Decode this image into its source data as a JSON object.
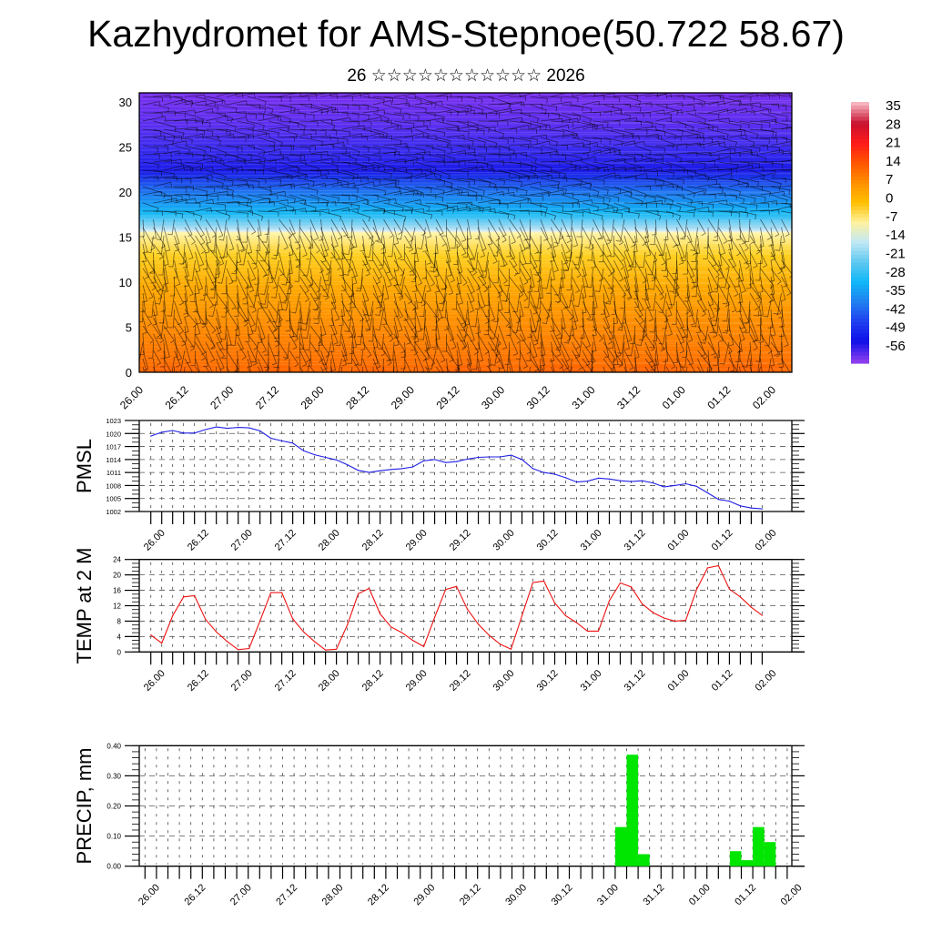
{
  "header": {
    "title": "Kazhydromet for AMS-Stepnoe(50.722 58.67)",
    "subtitle": "26 ☆☆☆☆☆☆☆☆☆☆☆ 2026"
  },
  "colors": {
    "pmsl_line": "#1f1fe6",
    "temp_line": "#ee1111",
    "precip_bar": "#00e600",
    "grid": "#555555"
  },
  "chart_data": [
    {
      "type": "heatmap",
      "name": "cross-section",
      "ylim": [
        0,
        31
      ],
      "yticks": [
        "0",
        "5",
        "10",
        "15",
        "20",
        "25",
        "30"
      ],
      "xticks": [
        "26.00",
        "26.12",
        "27.00",
        "27.12",
        "28.00",
        "28.12",
        "29.00",
        "29.12",
        "30.00",
        "30.12",
        "31.00",
        "31.12",
        "01.00",
        "01.12",
        "02.00"
      ],
      "colorbar": {
        "labels": [
          "35",
          "28",
          "21",
          "14",
          "7",
          "0",
          "-7",
          "-14",
          "-21",
          "-28",
          "-35",
          "-42",
          "-49",
          "-56"
        ],
        "stops": [
          "#f7b4c0",
          "#c8102e",
          "#ff1a1a",
          "#ff5500",
          "#ff9000",
          "#ffc000",
          "#fff2a0",
          "#c0e8f5",
          "#60c8f0",
          "#10b8f8",
          "#2080f0",
          "#2040f0",
          "#1010e8",
          "#8a3cf0"
        ]
      }
    },
    {
      "type": "line",
      "name": "PMSL",
      "ylabel": "PMSL",
      "ylim": [
        1002,
        1023
      ],
      "yticks": [
        "1002",
        "1005",
        "1008",
        "1011",
        "1014",
        "1017",
        "1020",
        "1023"
      ],
      "xticks": [
        "26.00",
        "26.12",
        "27.00",
        "27.12",
        "28.00",
        "28.12",
        "29.00",
        "29.12",
        "30.00",
        "30.12",
        "31.00",
        "31.12",
        "01.00",
        "01.12",
        "02.00"
      ],
      "values": [
        1019.4,
        1020.3,
        1020.7,
        1020.1,
        1020.1,
        1020.9,
        1021.5,
        1021.2,
        1021.4,
        1021.3,
        1020.6,
        1018.9,
        1018.3,
        1017.8,
        1016.0,
        1015.1,
        1014.5,
        1013.9,
        1012.8,
        1011.5,
        1011.0,
        1011.4,
        1011.7,
        1011.9,
        1012.3,
        1013.7,
        1014.0,
        1013.3,
        1013.5,
        1014.1,
        1014.5,
        1014.6,
        1014.6,
        1015.0,
        1014.0,
        1011.9,
        1011.0,
        1010.6,
        1009.8,
        1008.8,
        1009.0,
        1009.7,
        1009.5,
        1009.1,
        1008.9,
        1009.1,
        1008.6,
        1007.7,
        1008.0,
        1008.4,
        1007.8,
        1006.3,
        1004.8,
        1004.4,
        1003.3,
        1002.8,
        1002.6
      ]
    },
    {
      "type": "line",
      "name": "TEMP",
      "ylabel": "TEMP at 2 M",
      "ylim": [
        0,
        24
      ],
      "yticks": [
        "0",
        "4",
        "8",
        "12",
        "16",
        "20",
        "24"
      ],
      "xticks": [
        "26.00",
        "26.12",
        "27.00",
        "27.12",
        "28.00",
        "28.12",
        "29.00",
        "29.12",
        "30.00",
        "30.12",
        "31.00",
        "31.12",
        "01.00",
        "01.12",
        "02.00"
      ],
      "values": [
        4.4,
        2.3,
        9.4,
        14.3,
        14.6,
        8.5,
        5.2,
        2.7,
        0.6,
        0.9,
        8.0,
        15.4,
        15.4,
        8.6,
        5.2,
        2.7,
        0.5,
        0.7,
        7.0,
        15.1,
        16.5,
        9.9,
        6.5,
        5.0,
        3.0,
        1.4,
        9.0,
        16.2,
        17.0,
        11.1,
        7.2,
        4.3,
        2.0,
        0.7,
        9.4,
        18.0,
        18.4,
        12.7,
        9.4,
        7.6,
        5.4,
        5.4,
        13.3,
        17.9,
        16.9,
        12.5,
        10.2,
        8.8,
        8.0,
        8.2,
        16.2,
        21.8,
        22.4,
        16.3,
        14.3,
        11.6,
        9.5
      ]
    },
    {
      "type": "bar",
      "name": "PRECIP",
      "ylabel": "PRECIP, mm",
      "ylim": [
        0,
        0.4
      ],
      "yticks": [
        "0.00",
        "0.10",
        "0.20",
        "0.30",
        "0.40"
      ],
      "xticks": [
        "26.00",
        "26.12",
        "27.00",
        "27.12",
        "28.00",
        "28.12",
        "29.00",
        "29.12",
        "30.00",
        "30.12",
        "31.00",
        "31.12",
        "01.00",
        "01.12",
        "02.00"
      ],
      "values": [
        0,
        0,
        0,
        0,
        0,
        0,
        0,
        0,
        0,
        0,
        0,
        0,
        0,
        0,
        0,
        0,
        0,
        0,
        0,
        0,
        0,
        0,
        0,
        0,
        0,
        0,
        0,
        0,
        0,
        0,
        0,
        0,
        0,
        0,
        0,
        0,
        0,
        0,
        0,
        0,
        0,
        0,
        0.13,
        0.37,
        0.04,
        0,
        0,
        0,
        0,
        0,
        0,
        0,
        0.05,
        0.02,
        0.13,
        0.08,
        0
      ]
    }
  ]
}
